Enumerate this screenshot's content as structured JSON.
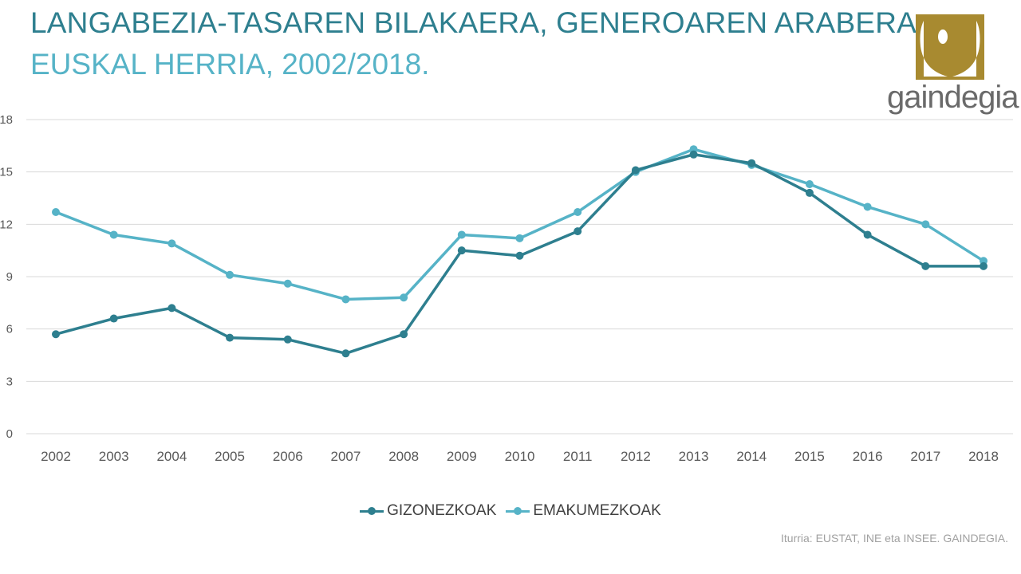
{
  "chart_data": {
    "type": "line",
    "title": "LANGABEZIA-TASAREN BILAKAERA, GENEROAREN ARABERA.",
    "subtitle": "EUSKAL HERRIA, 2002/2018.",
    "x": [
      "2002",
      "2003",
      "2004",
      "2005",
      "2006",
      "2007",
      "2008",
      "2009",
      "2010",
      "2011",
      "2012",
      "2013",
      "2014",
      "2015",
      "2016",
      "2017",
      "2018"
    ],
    "series": [
      {
        "name": "GIZONEZKOAK",
        "color": "#2e7f8f",
        "values": [
          5.7,
          6.6,
          7.2,
          5.5,
          5.4,
          4.6,
          5.7,
          10.5,
          10.2,
          11.6,
          15.1,
          16.0,
          15.5,
          13.8,
          11.4,
          9.6,
          9.6
        ]
      },
      {
        "name": "EMAKUMEZKOAK",
        "color": "#56b3c7",
        "values": [
          12.7,
          11.4,
          10.9,
          9.1,
          8.6,
          7.7,
          7.8,
          11.4,
          11.2,
          12.7,
          15.0,
          16.3,
          15.4,
          14.3,
          13.0,
          12.0,
          9.9
        ]
      }
    ],
    "yticks": [
      0,
      3,
      6,
      9,
      12,
      15,
      18
    ],
    "ylim": [
      0,
      18
    ],
    "grid": true,
    "legend": "bottom",
    "xlabel": "",
    "ylabel": ""
  },
  "source": "Iturria: EUSTAT, INE eta INSEE. GAINDEGIA.",
  "logo": {
    "text": "gaindegia",
    "color": "#a88a30"
  }
}
